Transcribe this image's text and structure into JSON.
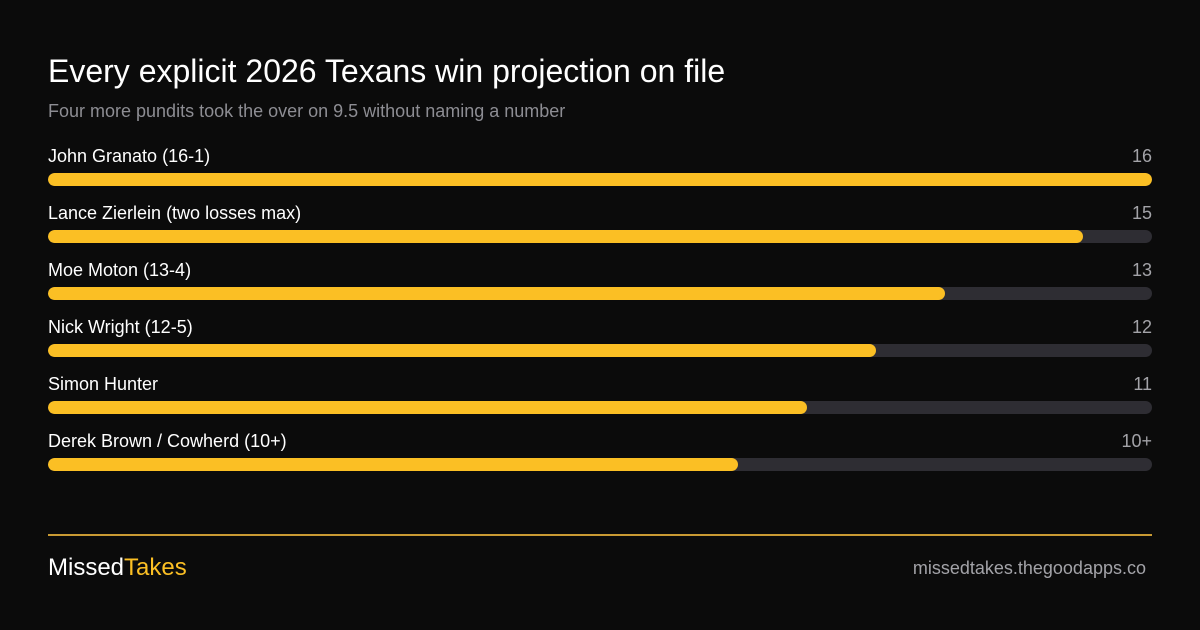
{
  "chart_data": {
    "type": "bar",
    "orientation": "horizontal",
    "title": "Every explicit 2026 Texans win projection on file",
    "subtitle": "Four more pundits took the over on 9.5 without naming a number",
    "categories": [
      "John Granato (16-1)",
      "Lance Zierlein (two losses max)",
      "Moe Moton (13-4)",
      "Nick Wright (12-5)",
      "Simon Hunter",
      "Derek Brown / Cowherd (10+)"
    ],
    "values": [
      16,
      15,
      13,
      12,
      11,
      10
    ],
    "value_labels": [
      "16",
      "15",
      "13",
      "12",
      "11",
      "10+"
    ],
    "xlim": [
      0,
      16
    ],
    "grid": false,
    "colors": {
      "bar": "#fbbf24",
      "track": "#2e2d33"
    }
  },
  "footer": {
    "brand_part1": "Missed",
    "brand_part2": "Takes",
    "site": "missedtakes.thegoodapps.co"
  }
}
